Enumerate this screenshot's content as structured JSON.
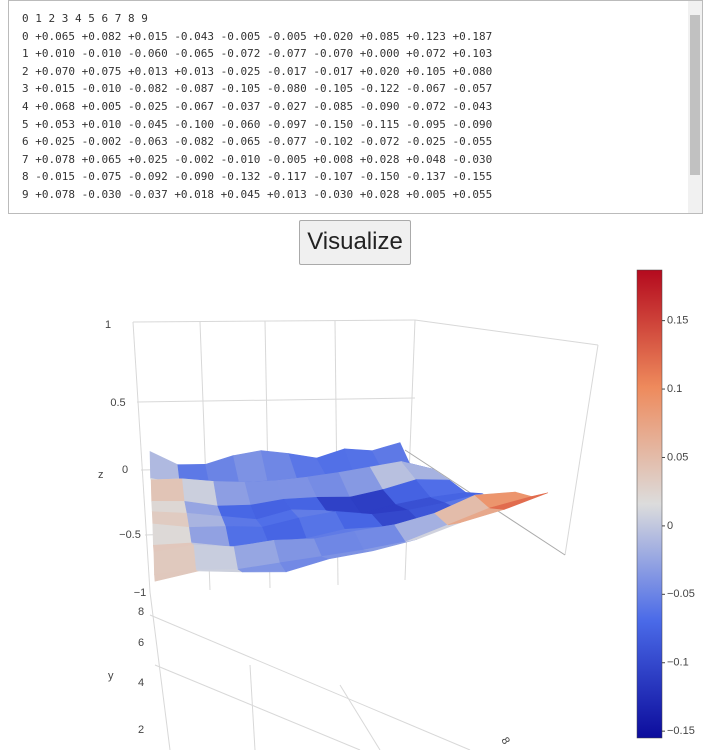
{
  "textarea": {
    "header": "0 1 2 3 4 5 6 7 8 9",
    "rows": [
      {
        "label": "0",
        "cells": [
          "+0.065",
          "+0.082",
          "+0.015",
          "-0.043",
          "-0.005",
          "-0.005",
          "+0.020",
          "+0.085",
          "+0.123",
          "+0.187"
        ]
      },
      {
        "label": "1",
        "cells": [
          "+0.010",
          "-0.010",
          "-0.060",
          "-0.065",
          "-0.072",
          "-0.077",
          "-0.070",
          "+0.000",
          "+0.072",
          "+0.103"
        ]
      },
      {
        "label": "2",
        "cells": [
          "+0.070",
          "+0.075",
          "+0.013",
          "+0.013",
          "-0.025",
          "-0.017",
          "-0.017",
          "+0.020",
          "+0.105",
          "+0.080"
        ]
      },
      {
        "label": "3",
        "cells": [
          "+0.015",
          "-0.010",
          "-0.082",
          "-0.087",
          "-0.105",
          "-0.080",
          "-0.105",
          "-0.122",
          "-0.067",
          "-0.057"
        ]
      },
      {
        "label": "4",
        "cells": [
          "+0.068",
          "+0.005",
          "-0.025",
          "-0.067",
          "-0.037",
          "-0.027",
          "-0.085",
          "-0.090",
          "-0.072",
          "-0.043"
        ]
      },
      {
        "label": "5",
        "cells": [
          "+0.053",
          "+0.010",
          "-0.045",
          "-0.100",
          "-0.060",
          "-0.097",
          "-0.150",
          "-0.115",
          "-0.095",
          "-0.090"
        ]
      },
      {
        "label": "6",
        "cells": [
          "+0.025",
          "-0.002",
          "-0.063",
          "-0.082",
          "-0.065",
          "-0.077",
          "-0.102",
          "-0.072",
          "-0.025",
          "-0.055"
        ]
      },
      {
        "label": "7",
        "cells": [
          "+0.078",
          "+0.065",
          "+0.025",
          "-0.002",
          "-0.010",
          "-0.005",
          "+0.008",
          "+0.028",
          "+0.048",
          "-0.030"
        ]
      },
      {
        "label": "8",
        "cells": [
          "-0.015",
          "-0.075",
          "-0.092",
          "-0.090",
          "-0.132",
          "-0.117",
          "-0.107",
          "-0.150",
          "-0.137",
          "-0.155"
        ]
      },
      {
        "label": "9",
        "cells": [
          "+0.078",
          "-0.030",
          "-0.037",
          "+0.018",
          "+0.045",
          "+0.013",
          "-0.030",
          "+0.028",
          "+0.005",
          "+0.055"
        ]
      }
    ]
  },
  "button": {
    "label": "Visualize"
  },
  "plot": {
    "z_axis": {
      "title": "z",
      "ticks": [
        "1",
        "0.5",
        "0",
        "−0.5",
        "−1"
      ]
    },
    "y_axis": {
      "title": "y",
      "ticks": [
        "8",
        "6",
        "4",
        "2"
      ]
    },
    "x_axis": {
      "ticks": [
        "8"
      ]
    },
    "colorbar": {
      "range": [
        -0.155,
        0.187
      ],
      "colorscale": [
        "#0c0c9c",
        "#4a6ae8",
        "#dcdcdc",
        "#ee8a5c",
        "#b40a1e"
      ],
      "ticks": [
        0.15,
        0.1,
        0.05,
        0,
        {
          "value": -0.05,
          "label": "−0.05"
        },
        {
          "value": -0.1,
          "label": "−0.1"
        },
        {
          "value": -0.15,
          "label": "−0.15"
        }
      ]
    }
  }
}
